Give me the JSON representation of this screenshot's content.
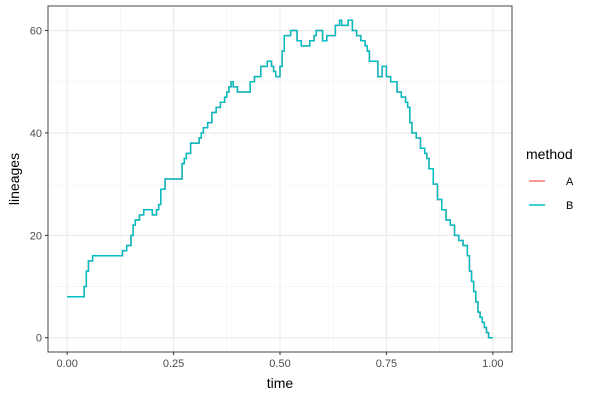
{
  "chart_data": {
    "type": "line",
    "xlabel": "time",
    "ylabel": "lineages",
    "xlim": [
      0,
      1
    ],
    "ylim": [
      0,
      62
    ],
    "x_ticks": [
      0,
      0.25,
      0.5,
      0.75,
      1
    ],
    "x_tick_labels": [
      "0.00",
      "0.25",
      "0.50",
      "0.75",
      "1.00"
    ],
    "y_ticks": [
      0,
      20,
      40,
      60
    ],
    "y_tick_labels": [
      "0",
      "20",
      "40",
      "60"
    ],
    "grid": true,
    "step": true,
    "legend": {
      "title": "method",
      "placement": "right",
      "entries": [
        {
          "name": "A",
          "color": "#F8766D"
        },
        {
          "name": "B",
          "color": "#00BFC4"
        }
      ]
    },
    "series": [
      {
        "name": "A",
        "color": "#F8766D",
        "x": [
          0.0,
          0.035,
          0.04,
          0.045,
          0.05,
          0.06,
          0.115,
          0.13,
          0.14,
          0.15,
          0.155,
          0.16,
          0.17,
          0.18,
          0.2,
          0.21,
          0.215,
          0.22,
          0.23,
          0.25,
          0.27,
          0.275,
          0.28,
          0.29,
          0.31,
          0.315,
          0.32,
          0.33,
          0.34,
          0.35,
          0.36,
          0.37,
          0.375,
          0.38,
          0.385,
          0.39,
          0.4,
          0.42,
          0.43,
          0.44,
          0.455,
          0.47,
          0.48,
          0.485,
          0.49,
          0.5,
          0.505,
          0.51,
          0.525,
          0.54,
          0.55,
          0.57,
          0.58,
          0.585,
          0.6,
          0.61,
          0.63,
          0.64,
          0.645,
          0.66,
          0.67,
          0.68,
          0.69,
          0.7,
          0.705,
          0.71,
          0.73,
          0.74,
          0.75,
          0.76,
          0.775,
          0.785,
          0.795,
          0.8,
          0.805,
          0.81,
          0.82,
          0.83,
          0.84,
          0.845,
          0.85,
          0.86,
          0.87,
          0.88,
          0.89,
          0.9,
          0.91,
          0.92,
          0.93,
          0.94,
          0.945,
          0.95,
          0.955,
          0.96,
          0.965,
          0.97,
          0.975,
          0.98,
          0.985,
          0.99,
          1.0
        ],
        "y": [
          8,
          8,
          10,
          13,
          15,
          16,
          16,
          17,
          18,
          20,
          22,
          23,
          24,
          25,
          24,
          25,
          26,
          29,
          31,
          31,
          34,
          35,
          36,
          38,
          39,
          40,
          41,
          42,
          44,
          45,
          46,
          47,
          48,
          49,
          50,
          49,
          48,
          48,
          50,
          51,
          53,
          54,
          53,
          52,
          51,
          53,
          56,
          59,
          60,
          58,
          57,
          58,
          59,
          60,
          58,
          59,
          61,
          62,
          61,
          62,
          60,
          59,
          58,
          57,
          56,
          54,
          51,
          53,
          51,
          50,
          48,
          47,
          46,
          45,
          42,
          40,
          39,
          37,
          36,
          35,
          33,
          30,
          27,
          25,
          23,
          22,
          20,
          19,
          18,
          16,
          13,
          11,
          9,
          7,
          5,
          4,
          3,
          2,
          1,
          0,
          0
        ]
      },
      {
        "name": "B",
        "color": "#00BFC4",
        "x": [
          0.0,
          0.035,
          0.04,
          0.045,
          0.05,
          0.06,
          0.115,
          0.13,
          0.14,
          0.15,
          0.155,
          0.16,
          0.17,
          0.18,
          0.2,
          0.21,
          0.215,
          0.22,
          0.23,
          0.25,
          0.27,
          0.275,
          0.28,
          0.29,
          0.31,
          0.315,
          0.32,
          0.33,
          0.34,
          0.35,
          0.36,
          0.37,
          0.375,
          0.38,
          0.385,
          0.39,
          0.4,
          0.42,
          0.43,
          0.44,
          0.455,
          0.47,
          0.48,
          0.485,
          0.49,
          0.5,
          0.505,
          0.51,
          0.525,
          0.54,
          0.55,
          0.57,
          0.58,
          0.585,
          0.6,
          0.61,
          0.63,
          0.64,
          0.645,
          0.66,
          0.67,
          0.68,
          0.69,
          0.7,
          0.705,
          0.71,
          0.73,
          0.74,
          0.75,
          0.76,
          0.775,
          0.785,
          0.795,
          0.8,
          0.805,
          0.81,
          0.82,
          0.83,
          0.84,
          0.845,
          0.85,
          0.86,
          0.87,
          0.88,
          0.89,
          0.9,
          0.91,
          0.92,
          0.93,
          0.94,
          0.945,
          0.95,
          0.955,
          0.96,
          0.965,
          0.97,
          0.975,
          0.98,
          0.985,
          0.99,
          1.0
        ],
        "y": [
          8,
          8,
          10,
          13,
          15,
          16,
          16,
          17,
          18,
          20,
          22,
          23,
          24,
          25,
          24,
          25,
          26,
          29,
          31,
          31,
          34,
          35,
          36,
          38,
          39,
          40,
          41,
          42,
          44,
          45,
          46,
          47,
          48,
          49,
          50,
          49,
          48,
          48,
          50,
          51,
          53,
          54,
          53,
          52,
          51,
          53,
          56,
          59,
          60,
          58,
          57,
          58,
          59,
          60,
          58,
          59,
          61,
          62,
          61,
          62,
          60,
          59,
          58,
          57,
          56,
          54,
          51,
          53,
          51,
          50,
          48,
          47,
          46,
          45,
          42,
          40,
          39,
          37,
          36,
          35,
          33,
          30,
          27,
          25,
          23,
          22,
          20,
          19,
          18,
          16,
          13,
          11,
          9,
          7,
          5,
          4,
          3,
          2,
          1,
          0,
          0
        ]
      }
    ]
  }
}
